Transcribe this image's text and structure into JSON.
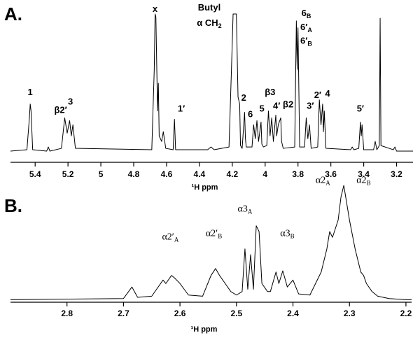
{
  "chart_data": [
    {
      "type": "line",
      "panel_label": "A.",
      "x_label": "¹H ppm",
      "color": "#000000",
      "xlim": [
        5.55,
        3.1
      ],
      "ylim": [
        0,
        100
      ],
      "xticks": [
        5.4,
        5.2,
        5.0,
        4.8,
        4.6,
        4.4,
        4.2,
        4.0,
        3.8,
        3.6,
        3.4,
        3.2
      ],
      "x": [
        5.55,
        5.45,
        5.435,
        5.43,
        5.425,
        5.415,
        5.33,
        5.32,
        5.31,
        5.24,
        5.22,
        5.205,
        5.19,
        5.18,
        5.17,
        5.155,
        4.69,
        4.675,
        4.67,
        4.665,
        4.655,
        4.65,
        4.645,
        4.63,
        4.62,
        4.605,
        4.56,
        4.552,
        4.545,
        4.35,
        4.33,
        4.31,
        4.22,
        4.205,
        4.195,
        4.185,
        4.175,
        4.165,
        4.155,
        4.15,
        4.14,
        4.125,
        4.12,
        4.115,
        4.08,
        4.07,
        4.06,
        4.05,
        4.04,
        4.025,
        4.02,
        4.01,
        3.99,
        3.98,
        3.97,
        3.96,
        3.95,
        3.935,
        3.93,
        3.92,
        3.905,
        3.9,
        3.89,
        3.82,
        3.81,
        3.805,
        3.8,
        3.79,
        3.76,
        3.75,
        3.74,
        3.73,
        3.72,
        3.68,
        3.67,
        3.66,
        3.65,
        3.645,
        3.64,
        3.63,
        3.48,
        3.47,
        3.46,
        3.43,
        3.42,
        3.415,
        3.41,
        3.4,
        3.34,
        3.33,
        3.32,
        3.305,
        3.3,
        3.295,
        3.22,
        3.21,
        3.2,
        3.1
      ],
      "values": [
        1,
        2,
        25,
        35,
        30,
        2,
        1,
        4,
        1,
        3,
        25,
        14,
        23,
        12,
        20,
        3,
        2,
        60,
        100,
        98,
        30,
        50,
        12,
        8,
        15,
        3,
        2,
        24,
        2,
        2,
        4,
        2,
        4,
        60,
        100,
        100,
        100,
        40,
        35,
        5,
        3,
        29,
        10,
        4,
        4,
        20,
        10,
        23,
        8,
        22,
        6,
        4,
        5,
        30,
        12,
        25,
        8,
        27,
        12,
        20,
        25,
        8,
        3,
        4,
        95,
        60,
        90,
        4,
        4,
        25,
        10,
        20,
        3,
        4,
        38,
        20,
        35,
        15,
        30,
        3,
        2,
        4,
        2,
        3,
        22,
        12,
        20,
        2,
        2,
        8,
        2,
        5,
        97,
        5,
        2,
        4,
        1,
        1
      ],
      "annotations": [
        {
          "text": "1",
          "x": 5.43,
          "y": 43
        },
        {
          "text": "β2′",
          "x": 5.245,
          "y": 30
        },
        {
          "text": "3",
          "x": 5.185,
          "y": 36
        },
        {
          "text": "x",
          "x": 4.67,
          "y": 103
        },
        {
          "text": "Butyl",
          "x": 4.34,
          "y": 104
        },
        {
          "text": "α CH",
          "sub": "2",
          "x": 4.34,
          "y": 93
        },
        {
          "text": "1′",
          "x": 4.51,
          "y": 31
        },
        {
          "text": "2",
          "x": 4.13,
          "y": 39
        },
        {
          "text": "6",
          "x": 4.09,
          "y": 27
        },
        {
          "text": "5",
          "x": 4.02,
          "y": 31
        },
        {
          "text": "β3",
          "x": 3.97,
          "y": 43
        },
        {
          "text": "4′",
          "x": 3.93,
          "y": 33
        },
        {
          "text": "β2",
          "x": 3.86,
          "y": 34
        },
        {
          "text": "6",
          "sub": "B",
          "x": 3.75,
          "y": 100
        },
        {
          "text": "6′",
          "sub": "A",
          "x": 3.75,
          "y": 90
        },
        {
          "text": "6′",
          "sub": "B",
          "x": 3.75,
          "y": 80
        },
        {
          "text": "3′",
          "x": 3.725,
          "y": 33
        },
        {
          "text": "2′",
          "x": 3.68,
          "y": 41
        },
        {
          "text": "4",
          "x": 3.62,
          "y": 42
        },
        {
          "text": "5′",
          "x": 3.42,
          "y": 31
        }
      ]
    },
    {
      "type": "line",
      "panel_label": "B.",
      "x_label": "¹H ppm",
      "color": "#000000",
      "xlim": [
        2.9,
        2.19
      ],
      "ylim": [
        0,
        100
      ],
      "xticks": [
        2.8,
        2.7,
        2.6,
        2.5,
        2.4,
        2.3,
        2.2
      ],
      "x": [
        2.9,
        2.7,
        2.685,
        2.675,
        2.65,
        2.63,
        2.625,
        2.615,
        2.61,
        2.6,
        2.585,
        2.56,
        2.545,
        2.537,
        2.53,
        2.52,
        2.51,
        2.5,
        2.49,
        2.485,
        2.48,
        2.475,
        2.47,
        2.465,
        2.46,
        2.455,
        2.445,
        2.44,
        2.43,
        2.425,
        2.418,
        2.41,
        2.4,
        2.39,
        2.37,
        2.35,
        2.34,
        2.335,
        2.33,
        2.32,
        2.315,
        2.31,
        2.305,
        2.3,
        2.29,
        2.285,
        2.28,
        2.275,
        2.27,
        2.26,
        2.25,
        2.23,
        2.2,
        2.19
      ],
      "values": [
        1,
        2,
        12,
        3,
        4,
        18,
        15,
        22,
        20,
        15,
        5,
        4,
        22,
        28,
        22,
        15,
        8,
        5,
        8,
        45,
        10,
        40,
        10,
        65,
        60,
        15,
        8,
        8,
        25,
        15,
        26,
        12,
        18,
        6,
        5,
        25,
        45,
        60,
        55,
        70,
        90,
        100,
        85,
        70,
        45,
        35,
        25,
        22,
        15,
        8,
        4,
        2,
        1,
        1
      ],
      "annotations": [
        {
          "text": "α2′",
          "sub": "A",
          "x": 2.617,
          "y": 55
        },
        {
          "text": "α2′",
          "sub": "B",
          "x": 2.54,
          "y": 58
        },
        {
          "text": "α3",
          "sub": "A",
          "x": 2.485,
          "y": 79
        },
        {
          "text": "α3",
          "sub": "B",
          "x": 2.41,
          "y": 58
        },
        {
          "text": "α2",
          "sub": "A",
          "x": 2.347,
          "y": 104
        },
        {
          "text": "α2",
          "sub": "B",
          "x": 2.275,
          "y": 104
        }
      ]
    }
  ]
}
